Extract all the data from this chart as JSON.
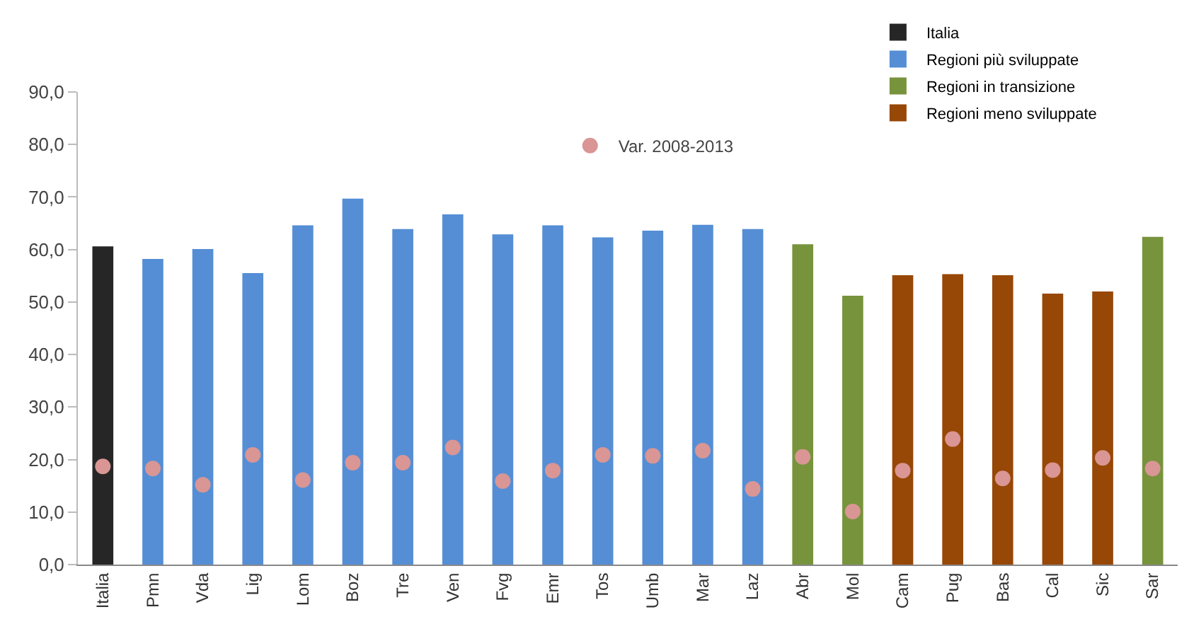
{
  "chart_data": {
    "type": "bar",
    "categories": [
      "Italia",
      "Pmn",
      "Vda",
      "Lig",
      "Lom",
      "Boz",
      "Tre",
      "Ven",
      "Fvg",
      "Emr",
      "Tos",
      "Umb",
      "Mar",
      "Laz",
      "Abr",
      "Mol",
      "Cam",
      "Pug",
      "Bas",
      "Cal",
      "Sic",
      "Sar"
    ],
    "series": [
      {
        "name": "Italia",
        "color": "#262626",
        "values": [
          60.6,
          null,
          null,
          null,
          null,
          null,
          null,
          null,
          null,
          null,
          null,
          null,
          null,
          null,
          null,
          null,
          null,
          null,
          null,
          null,
          null,
          null
        ]
      },
      {
        "name": "Regioni più sviluppate",
        "color": "#558ed5",
        "values": [
          null,
          58.2,
          60.1,
          55.5,
          64.6,
          69.7,
          63.9,
          66.7,
          62.9,
          64.6,
          62.3,
          63.6,
          64.7,
          63.9,
          null,
          null,
          null,
          null,
          null,
          null,
          null,
          null
        ]
      },
      {
        "name": "Regioni in transizione",
        "color": "#77933c",
        "values": [
          null,
          null,
          null,
          null,
          null,
          null,
          null,
          null,
          null,
          null,
          null,
          null,
          null,
          null,
          61.0,
          51.2,
          null,
          null,
          null,
          null,
          null,
          62.4
        ]
      },
      {
        "name": "Regioni meno sviluppate",
        "color": "#974706",
        "values": [
          null,
          null,
          null,
          null,
          null,
          null,
          null,
          null,
          null,
          null,
          null,
          null,
          null,
          null,
          null,
          null,
          55.1,
          55.3,
          55.1,
          51.6,
          52.0,
          null
        ]
      },
      {
        "name": "Var. 2008-2013",
        "type": "scatter",
        "color": "#d99694",
        "values": [
          18.7,
          18.3,
          15.2,
          20.9,
          16.1,
          19.4,
          19.4,
          22.3,
          15.9,
          17.9,
          20.9,
          20.7,
          21.7,
          14.4,
          20.5,
          10.1,
          17.9,
          23.9,
          16.4,
          18.0,
          20.3,
          18.3
        ]
      }
    ],
    "ylim": [
      0,
      90
    ],
    "yticks": [
      {
        "value": 0,
        "label": "0,0"
      },
      {
        "value": 10,
        "label": "10,0"
      },
      {
        "value": 20,
        "label": "20,0"
      },
      {
        "value": 30,
        "label": "30,0"
      },
      {
        "value": 40,
        "label": "40,0"
      },
      {
        "value": 50,
        "label": "50,0"
      },
      {
        "value": 60,
        "label": "60,0"
      },
      {
        "value": 70,
        "label": "70,0"
      },
      {
        "value": 80,
        "label": "80,0"
      },
      {
        "value": 90,
        "label": "90,0"
      }
    ],
    "grid": false,
    "legend": "top right",
    "marker": "circle"
  }
}
